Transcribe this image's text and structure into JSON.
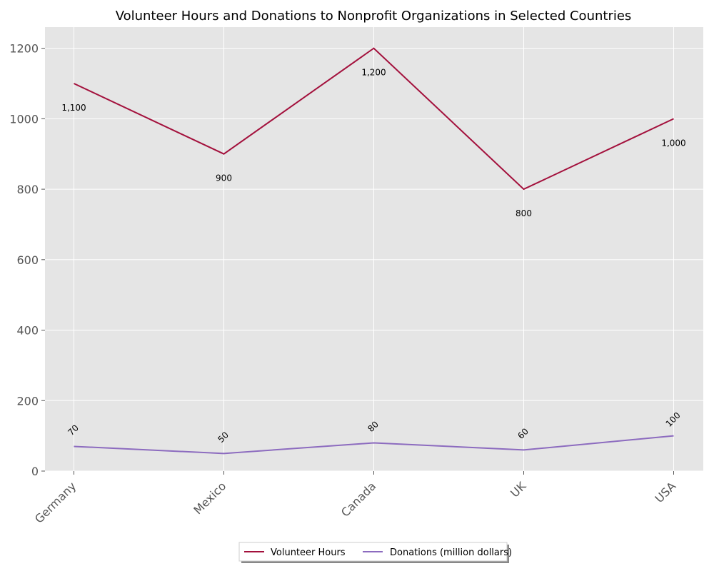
{
  "chart_data": {
    "type": "line",
    "title": "Volunteer Hours and Donations to Nonprofit Organizations in Selected Countries",
    "xlabel": "",
    "ylabel": "",
    "categories": [
      "Germany",
      "Mexico",
      "Canada",
      "UK",
      "USA"
    ],
    "series": [
      {
        "name": "Volunteer Hours",
        "values": [
          1100,
          900,
          1200,
          800,
          1000
        ],
        "labels": [
          "1,100",
          "900",
          "1,200",
          "800",
          "1,000"
        ],
        "color": "#a3103c"
      },
      {
        "name": "Donations (million dollars)",
        "values": [
          70,
          50,
          80,
          60,
          100
        ],
        "labels": [
          "70",
          "50",
          "80",
          "60",
          "100"
        ],
        "color": "#8c6bbf"
      }
    ],
    "ylim": [
      0,
      1260
    ],
    "yticks": [
      0,
      200,
      400,
      600,
      800,
      1000,
      1200
    ],
    "ytick_labels": [
      "0",
      "200",
      "400",
      "600",
      "800",
      "1000",
      "1200"
    ],
    "grid": true,
    "legend_position": "bottom-center",
    "colors": {
      "plot_background": "#e5e5e5",
      "grid": "#ffffff"
    }
  }
}
